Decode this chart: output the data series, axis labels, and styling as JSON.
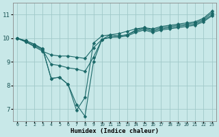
{
  "xlabel": "Humidex (Indice chaleur)",
  "ylabel": "",
  "xlim": [
    -0.5,
    23.5
  ],
  "ylim": [
    6.5,
    11.5
  ],
  "yticks": [
    7,
    8,
    9,
    10,
    11
  ],
  "xtick_labels": [
    "0",
    "1",
    "2",
    "3",
    "4",
    "5",
    "6",
    "7",
    "8",
    "9",
    "10",
    "11",
    "12",
    "13",
    "14",
    "15",
    "16",
    "17",
    "18",
    "19",
    "20",
    "21",
    "22",
    "23"
  ],
  "bg_color": "#c8e8e8",
  "grid_color": "#a0c8c8",
  "line_color": "#1a6868",
  "series": [
    [
      10.0,
      9.9,
      9.75,
      9.55,
      8.3,
      8.35,
      8.05,
      6.95,
      7.5,
      9.8,
      10.1,
      10.15,
      10.2,
      10.3,
      10.4,
      10.45,
      10.4,
      10.5,
      10.55,
      10.6,
      10.65,
      10.7,
      10.85,
      11.15
    ],
    [
      10.0,
      9.9,
      9.75,
      9.55,
      8.3,
      8.35,
      8.05,
      7.2,
      6.7,
      9.0,
      9.95,
      10.15,
      10.1,
      10.15,
      10.35,
      10.45,
      10.35,
      10.45,
      10.5,
      10.55,
      10.6,
      10.65,
      10.8,
      11.08
    ],
    [
      10.0,
      9.85,
      9.65,
      9.45,
      9.3,
      9.25,
      9.25,
      9.2,
      9.15,
      9.6,
      9.95,
      10.05,
      10.1,
      10.15,
      10.3,
      10.4,
      10.3,
      10.4,
      10.45,
      10.5,
      10.55,
      10.6,
      10.75,
      11.0
    ],
    [
      10.0,
      9.85,
      9.7,
      9.5,
      8.9,
      8.85,
      8.75,
      8.7,
      8.6,
      9.2,
      9.95,
      10.05,
      10.05,
      10.1,
      10.25,
      10.35,
      10.25,
      10.35,
      10.4,
      10.45,
      10.5,
      10.55,
      10.7,
      10.95
    ]
  ],
  "marker": "D",
  "markersize": 2.5,
  "linewidth": 0.8,
  "xlabel_fontsize": 6.5,
  "xlabel_fontweight": "bold",
  "xtick_fontsize": 4.8,
  "ytick_fontsize": 6.5
}
